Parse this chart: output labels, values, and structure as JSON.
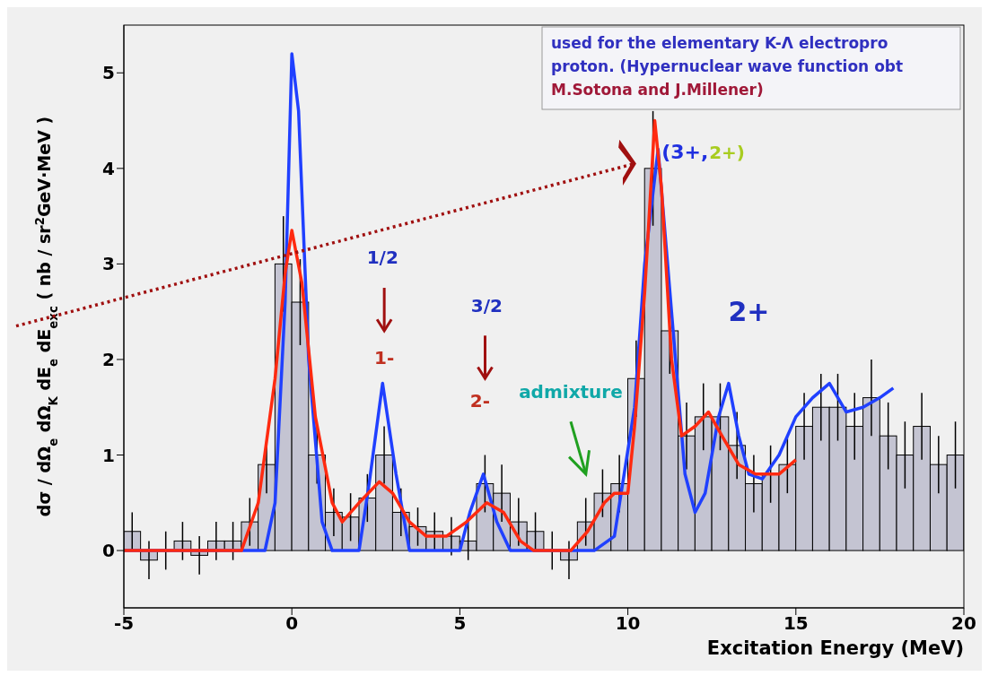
{
  "chart_data": {
    "type": "histogram",
    "xlabel": "Excitation Energy (MeV)",
    "ylabel": "dσ / dΩ$_{e}$ dΩ$_{K}$ dE$_{e}$ dE$_{exc}$   ( nb / sr$^{2}$GeV·MeV )",
    "bins": [
      -5,
      -4.5,
      -4,
      -3.5,
      -3,
      -2.5,
      -2,
      -1.5,
      -1,
      -0.5,
      0,
      0.5,
      1,
      1.5,
      2,
      2.5,
      3,
      3.5,
      4,
      4.5,
      5,
      5.5,
      6,
      6.5,
      7,
      7.5,
      8,
      8.5,
      9,
      9.5,
      10,
      10.5,
      11,
      11.5,
      12,
      12.5,
      13,
      13.5,
      14,
      14.5,
      15,
      15.5,
      16,
      16.5,
      17,
      17.5,
      18,
      18.5,
      19,
      19.5,
      20
    ],
    "series": [
      {
        "type": "histogram",
        "color": "#c4c4d2",
        "values": [
          0.2,
          -0.1,
          0.0,
          0.1,
          -0.05,
          0.1,
          0.1,
          0.3,
          0.9,
          3.0,
          2.6,
          1.0,
          0.4,
          0.35,
          0.55,
          1.0,
          0.4,
          0.25,
          0.2,
          0.15,
          0.1,
          0.7,
          0.6,
          0.3,
          0.2,
          0.0,
          -0.1,
          0.3,
          0.6,
          0.7,
          1.8,
          4.0,
          2.3,
          1.2,
          1.4,
          1.4,
          1.1,
          0.7,
          0.8,
          0.9,
          1.3,
          1.5,
          1.5,
          1.3,
          1.6,
          1.2,
          1.0,
          1.3,
          0.9,
          1.0
        ],
        "errors": [
          0.2,
          0.2,
          0.2,
          0.2,
          0.2,
          0.2,
          0.2,
          0.25,
          0.3,
          0.5,
          0.45,
          0.3,
          0.25,
          0.25,
          0.25,
          0.3,
          0.25,
          0.2,
          0.2,
          0.2,
          0.2,
          0.3,
          0.3,
          0.25,
          0.2,
          0.2,
          0.2,
          0.25,
          0.25,
          0.3,
          0.4,
          0.6,
          0.45,
          0.35,
          0.35,
          0.35,
          0.35,
          0.3,
          0.3,
          0.3,
          0.35,
          0.35,
          0.35,
          0.35,
          0.4,
          0.35,
          0.35,
          0.35,
          0.3,
          0.35
        ]
      },
      {
        "type": "line",
        "color": "#2040ff",
        "x": [
          -5,
          -0.8,
          -0.5,
          -0.2,
          0,
          0.2,
          0.5,
          0.9,
          1.2,
          2,
          2.3,
          2.7,
          3.1,
          3.5,
          5,
          5.3,
          5.7,
          6.1,
          6.5,
          9,
          9.6,
          10.2,
          10.5,
          10.9,
          11.3,
          11.7,
          12,
          12.3,
          12.7,
          13,
          13.3,
          13.6,
          14,
          14.5,
          15,
          15.5,
          16,
          16.5,
          17,
          17.5,
          17.9
        ],
        "values": [
          0,
          0,
          0.5,
          2.6,
          5.2,
          4.6,
          2.0,
          0.3,
          0,
          0,
          0.7,
          1.75,
          0.8,
          0,
          0,
          0.4,
          0.8,
          0.3,
          0,
          0,
          0.15,
          1.5,
          3.0,
          4.2,
          2.5,
          0.8,
          0.4,
          0.6,
          1.4,
          1.75,
          1.2,
          0.8,
          0.75,
          1.0,
          1.4,
          1.6,
          1.75,
          1.45,
          1.5,
          1.6,
          1.7
        ]
      },
      {
        "type": "line",
        "color": "#ff2a10",
        "x": [
          -5,
          -1.5,
          -1,
          -0.5,
          -0.2,
          0,
          0.3,
          0.7,
          1.2,
          1.5,
          2,
          2.6,
          3,
          3.5,
          4,
          4.6,
          5.2,
          5.8,
          6.3,
          6.8,
          7.2,
          8.3,
          8.8,
          9.3,
          9.6,
          10,
          10.2,
          10.5,
          10.8,
          11,
          11.3,
          11.6,
          12,
          12.4,
          12.8,
          13.3,
          13.8,
          14.5,
          15
        ],
        "values": [
          0,
          0,
          0.5,
          1.8,
          2.9,
          3.35,
          2.8,
          1.4,
          0.5,
          0.3,
          0.5,
          0.72,
          0.6,
          0.3,
          0.15,
          0.15,
          0.3,
          0.5,
          0.4,
          0.1,
          0,
          0,
          0.2,
          0.5,
          0.6,
          0.6,
          1.3,
          2.7,
          4.5,
          3.8,
          2.0,
          1.2,
          1.3,
          1.45,
          1.2,
          0.9,
          0.8,
          0.8,
          0.95
        ]
      }
    ],
    "xlim": [
      -5,
      20
    ],
    "xticks": [
      -5,
      0,
      5,
      10,
      15,
      20
    ],
    "ylim": [
      -0.6,
      5.5
    ],
    "yticks": [
      0,
      1,
      2,
      3,
      4,
      5
    ],
    "grid": false,
    "legend": false,
    "marker": "none",
    "line_style": "solid",
    "annotations": [
      "used for the elementary K-Λ electropro",
      "proton. (Hypernuclear wave function obt",
      "M.Sotona and J.Millener)",
      "1/2",
      "1-",
      "3/2",
      "2-",
      "admixture",
      "(3+,",
      "2+)",
      "2+"
    ]
  }
}
